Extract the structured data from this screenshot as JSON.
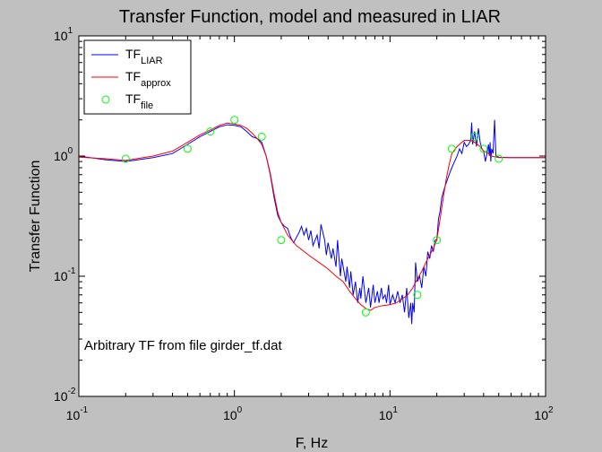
{
  "figure": {
    "background": "#c0c0c0",
    "plot_background": "#ffffff"
  },
  "chart_data": {
    "type": "line",
    "title": "Transfer Function, model and measured in LIAR",
    "xlabel": "F, Hz",
    "ylabel": "Transfer Function",
    "xscale": "log",
    "yscale": "log",
    "xlim": [
      0.1,
      100
    ],
    "ylim": [
      0.01,
      10
    ],
    "grid": false,
    "legend_placement": "top-left",
    "x_ticks": [
      {
        "value": 0.1,
        "base": "10",
        "exp": "-1"
      },
      {
        "value": 1,
        "base": "10",
        "exp": "0"
      },
      {
        "value": 10,
        "base": "10",
        "exp": "1"
      },
      {
        "value": 100,
        "base": "10",
        "exp": "2"
      }
    ],
    "y_ticks": [
      {
        "value": 0.01,
        "base": "10",
        "exp": "-2"
      },
      {
        "value": 0.1,
        "base": "10",
        "exp": "-1"
      },
      {
        "value": 1,
        "base": "10",
        "exp": "0"
      },
      {
        "value": 10,
        "base": "10",
        "exp": "1"
      }
    ],
    "annotation": "Arbitrary TF  from file girder_tf.dat",
    "series": [
      {
        "name": "TF",
        "subscript": "LIAR",
        "style": "line",
        "color": "#0000ff",
        "x": [
          0.1,
          0.15,
          0.2,
          0.3,
          0.4,
          0.5,
          0.6,
          0.7,
          0.8,
          0.9,
          1.0,
          1.1,
          1.2,
          1.3,
          1.4,
          1.5,
          1.6,
          1.7,
          1.8,
          1.9,
          2.0,
          2.1,
          2.2,
          2.3,
          2.4,
          2.5,
          2.6,
          2.7,
          2.8,
          2.9,
          3.0,
          3.1,
          3.2,
          3.4,
          3.5,
          3.6,
          3.8,
          3.9,
          4.0,
          4.2,
          4.3,
          4.5,
          4.6,
          4.8,
          4.9,
          5.0,
          5.2,
          5.3,
          5.5,
          5.6,
          5.8,
          6.0,
          6.2,
          6.4,
          6.5,
          6.7,
          7.0,
          7.3,
          7.5,
          7.8,
          8.0,
          8.3,
          8.5,
          8.8,
          9.0,
          9.3,
          9.5,
          9.8,
          10.0,
          10.4,
          10.8,
          11.2,
          11.6,
          12.0,
          12.4,
          12.8,
          13.2,
          13.6,
          13.8,
          14.0,
          14.3,
          14.6,
          15.0,
          15.5,
          16.0,
          16.5,
          17.0,
          17.5,
          18.0,
          18.5,
          19.0,
          19.5,
          20.0,
          20.5,
          21.0,
          21.5,
          22.0,
          22.5,
          23.0,
          23.5,
          24.0,
          24.5,
          25.0,
          25.5,
          26.0,
          27.0,
          28.0,
          29.0,
          30.0,
          31.0,
          32.0,
          33.0,
          33.5,
          34.0,
          35.0,
          36.0,
          37.0,
          38.0,
          39.0,
          40.0,
          41.0,
          42.0,
          43.0,
          43.5,
          44.0,
          44.5,
          45.0,
          46.0,
          47.0,
          48.0,
          50.0,
          60.0,
          80.0,
          100.0
        ],
        "y": [
          1.0,
          0.93,
          0.9,
          0.97,
          1.05,
          1.25,
          1.45,
          1.6,
          1.75,
          1.82,
          1.8,
          1.75,
          1.6,
          1.45,
          1.4,
          1.3,
          1.0,
          0.7,
          0.45,
          0.32,
          0.28,
          0.26,
          0.25,
          0.21,
          0.19,
          0.21,
          0.23,
          0.26,
          0.22,
          0.25,
          0.2,
          0.24,
          0.18,
          0.22,
          0.17,
          0.27,
          0.2,
          0.15,
          0.19,
          0.14,
          0.17,
          0.12,
          0.2,
          0.1,
          0.14,
          0.12,
          0.09,
          0.12,
          0.08,
          0.11,
          0.07,
          0.09,
          0.06,
          0.08,
          0.065,
          0.1,
          0.06,
          0.08,
          0.055,
          0.085,
          0.06,
          0.075,
          0.06,
          0.08,
          0.065,
          0.07,
          0.06,
          0.085,
          0.058,
          0.07,
          0.06,
          0.075,
          0.06,
          0.07,
          0.05,
          0.08,
          0.045,
          0.06,
          0.04,
          0.06,
          0.05,
          0.13,
          0.09,
          0.1,
          0.08,
          0.12,
          0.1,
          0.16,
          0.14,
          0.18,
          0.16,
          0.2,
          0.2,
          0.3,
          0.35,
          0.45,
          0.5,
          0.55,
          0.6,
          0.65,
          0.7,
          0.75,
          0.8,
          0.85,
          0.9,
          1.0,
          1.15,
          1.05,
          1.3,
          1.2,
          1.25,
          1.35,
          1.9,
          1.25,
          1.6,
          1.2,
          1.7,
          1.3,
          1.15,
          1.1,
          0.9,
          1.05,
          1.25,
          1.0,
          1.3,
          0.9,
          1.15,
          1.05,
          2.0,
          1.0,
          0.98,
          0.97,
          0.97,
          0.97
        ]
      },
      {
        "name": "TF",
        "subscript": "approx",
        "style": "line",
        "color": "#ff0000",
        "x": [
          0.1,
          0.15,
          0.2,
          0.3,
          0.4,
          0.5,
          0.6,
          0.7,
          0.8,
          0.9,
          1.0,
          1.1,
          1.2,
          1.3,
          1.4,
          1.5,
          1.6,
          1.7,
          1.8,
          1.9,
          2.0,
          2.2,
          2.5,
          3.0,
          3.5,
          4.0,
          4.5,
          5.0,
          5.5,
          6.0,
          6.5,
          7.0,
          7.5,
          8.0,
          9.0,
          10.0,
          11.0,
          12.0,
          13.0,
          14.0,
          15.0,
          16.0,
          17.0,
          18.0,
          19.0,
          20.0,
          21.0,
          22.0,
          23.0,
          24.0,
          25.0,
          27.0,
          30.0,
          33.0,
          35.0,
          38.0,
          40.0,
          43.0,
          45.0,
          50.0,
          60.0,
          80.0,
          100.0
        ],
        "y": [
          0.98,
          0.95,
          0.92,
          1.0,
          1.1,
          1.3,
          1.5,
          1.65,
          1.8,
          1.88,
          1.85,
          1.8,
          1.7,
          1.55,
          1.4,
          1.25,
          1.0,
          0.72,
          0.48,
          0.34,
          0.28,
          0.22,
          0.18,
          0.15,
          0.13,
          0.115,
          0.1,
          0.09,
          0.075,
          0.065,
          0.058,
          0.054,
          0.052,
          0.055,
          0.057,
          0.058,
          0.06,
          0.065,
          0.07,
          0.08,
          0.095,
          0.11,
          0.13,
          0.15,
          0.17,
          0.2,
          0.3,
          0.45,
          0.65,
          0.85,
          1.05,
          1.2,
          1.35,
          1.35,
          1.3,
          1.2,
          1.1,
          1.05,
          1.0,
          0.97,
          0.97,
          0.97,
          0.97
        ]
      },
      {
        "name": "TF",
        "subscript": "file",
        "style": "markers",
        "color": "#00ff00",
        "x": [
          0.2,
          0.5,
          0.7,
          1.0,
          1.5,
          2.0,
          7.0,
          15.0,
          20.0,
          25.0,
          35.0,
          40.0,
          50.0
        ],
        "y": [
          0.95,
          1.15,
          1.6,
          2.0,
          1.45,
          0.2,
          0.05,
          0.07,
          0.2,
          1.15,
          1.45,
          1.15,
          0.95
        ]
      }
    ]
  }
}
